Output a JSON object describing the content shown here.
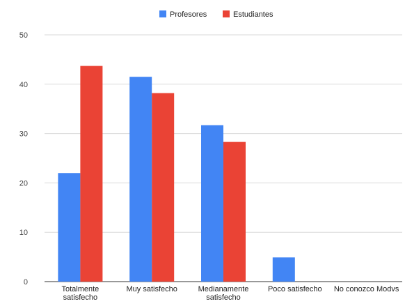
{
  "chart_data": {
    "type": "bar",
    "categories": [
      [
        "Totalmente",
        "satisfecho"
      ],
      [
        "Muy satisfecho"
      ],
      [
        "Medianamente",
        "satisfecho"
      ],
      [
        "Poco satisfecho"
      ],
      [
        "No conozco Modvs"
      ]
    ],
    "series": [
      {
        "name": "Profesores",
        "color": "#4285F4",
        "values": [
          22,
          41.5,
          31.7,
          4.9,
          0
        ]
      },
      {
        "name": "Estudiantes",
        "color": "#EA4335",
        "values": [
          43.7,
          38.2,
          28.3,
          0,
          0
        ]
      }
    ],
    "ylim": [
      0,
      50
    ],
    "yticks": [
      0,
      10,
      20,
      30,
      40,
      50
    ],
    "grid": true,
    "legend_position": "top-center"
  }
}
